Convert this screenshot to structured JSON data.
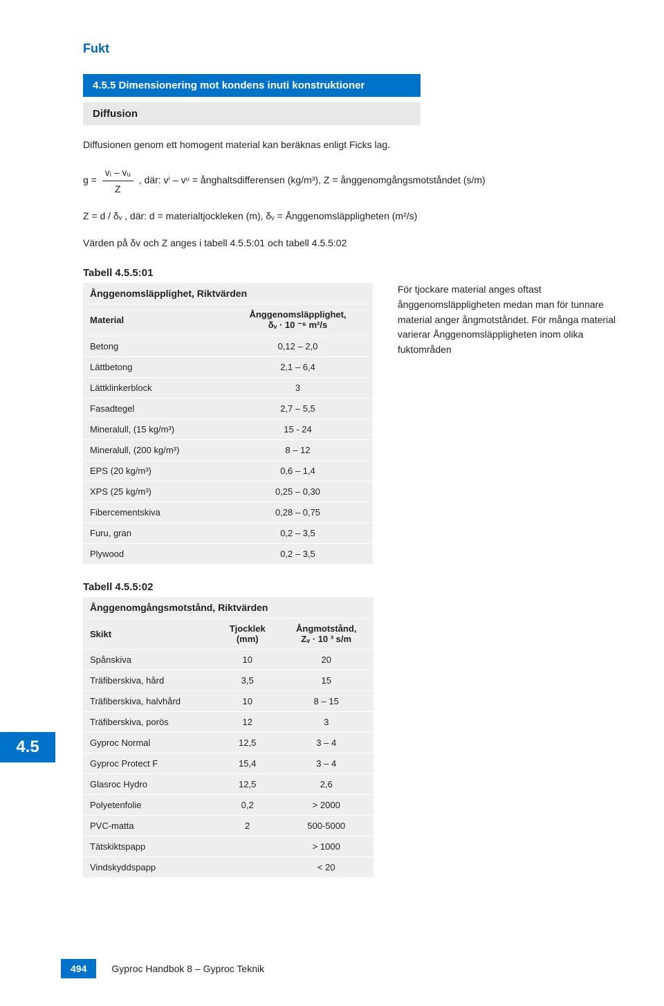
{
  "chapter_title": "Fukt",
  "section_bar": "4.5.5 Dimensionering mot kondens inuti konstruktioner",
  "sub_bar": "Diffusion",
  "intro_para": "Diffusionen genom ett homogent material kan beräknas enligt Ficks lag.",
  "formula_prefix": "g =",
  "formula_num": "vᵢ – vᵤ",
  "formula_den": "Z",
  "formula_tail": ", där: vⁱ – vᵘ = ånghaltsdifferensen (kg/m³), Z = ånggenomgångsmotståndet (s/m)",
  "formula2": "Z = d / δᵥ , där: d = materialtjockleken (m), δᵥ = Ånggenomsläppligheten (m²/s)",
  "values_line": "Värden på δv och Z anges i tabell 4.5.5:01 och tabell 4.5.5:02",
  "t1_caption": "Tabell 4.5.5:01",
  "t1_title": "Ånggenomsläpplighet, Riktvärden",
  "t1_h1": "Material",
  "t1_h2_l1": "Ånggenomsläpplighet,",
  "t1_h2_l2": "δᵥ · 10 ⁻⁶ m²/s",
  "t1_rows": [
    [
      "Betong",
      "0,12 – 2,0"
    ],
    [
      "Lättbetong",
      "2,1 – 6,4"
    ],
    [
      "Lättklinkerblock",
      "3"
    ],
    [
      "Fasadtegel",
      "2,7 – 5,5"
    ],
    [
      "Mineralull, (15 kg/m³)",
      "15 - 24"
    ],
    [
      "Mineralull, (200 kg/m³)",
      "8 – 12"
    ],
    [
      "EPS (20 kg/m³)",
      "0,6 – 1,4"
    ],
    [
      "XPS (25 kg/m³)",
      "0,25 – 0,30"
    ],
    [
      "Fibercementskiva",
      "0,28 – 0,75"
    ],
    [
      "Furu, gran",
      "0,2 – 3,5"
    ],
    [
      "Plywood",
      "0,2 – 3,5"
    ]
  ],
  "side_text": "För tjockare material anges oftast ånggenomsläppligheten medan man för tunnare material anger ångmotståndet. För många material varierar Ånggenomsläppligheten inom olika fuktområden",
  "t2_caption": "Tabell 4.5.5:02",
  "t2_title": "Ånggenomgångsmotstånd, Riktvärden",
  "t2_h1": "Skikt",
  "t2_h2_l1": "Tjocklek",
  "t2_h2_l2": "(mm)",
  "t2_h3_l1": "Ångmotstånd,",
  "t2_h3_l2": "Zᵥ · 10 ³ s/m",
  "t2_rows": [
    [
      "Spånskiva",
      "10",
      "20"
    ],
    [
      "Träfiberskiva, hård",
      "3,5",
      "15"
    ],
    [
      "Träfiberskiva, halvhård",
      "10",
      "8 – 15"
    ],
    [
      "Träfiberskiva, porös",
      "12",
      "3"
    ],
    [
      "Gyproc Normal",
      "12,5",
      "3 – 4"
    ],
    [
      "Gyproc Protect F",
      "15,4",
      "3 – 4"
    ],
    [
      "Glasroc Hydro",
      "12,5",
      "2,6"
    ],
    [
      "Polyetenfolie",
      "0,2",
      "> 2000"
    ],
    [
      "PVC-matta",
      "2",
      "500-5000"
    ],
    [
      "Tätskiktspapp",
      "",
      "> 1000"
    ],
    [
      "Vindskyddspapp",
      "",
      "< 20"
    ]
  ],
  "side_tab": "4.5",
  "page_num": "494",
  "footer_text": "Gyproc Handbok 8 – Gyproc Teknik"
}
